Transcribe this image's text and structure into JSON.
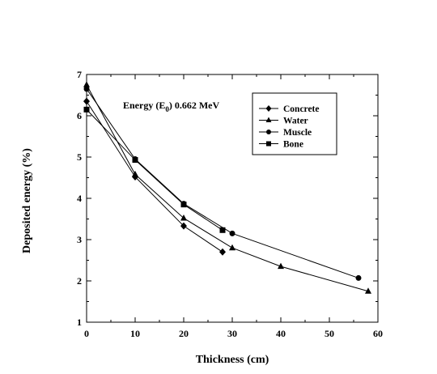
{
  "chart_data": {
    "type": "line",
    "xlabel": "Thickness (cm)",
    "ylabel": "Deposited energy  (%)",
    "xlim": [
      0,
      60
    ],
    "ylim": [
      1,
      7
    ],
    "xticks": [
      0,
      10,
      20,
      30,
      40,
      50,
      60
    ],
    "yticks": [
      1,
      2,
      3,
      4,
      5,
      6,
      7
    ],
    "grid": false,
    "legend_position": "top-right",
    "annotation": {
      "prefix": "Energy (E",
      "subscript": "0",
      "suffix": ") 0.662 MeV"
    },
    "series": [
      {
        "name": "Concrete",
        "marker": "diamond",
        "x": [
          0,
          10,
          20,
          28
        ],
        "y": [
          6.35,
          4.52,
          3.33,
          2.7
        ]
      },
      {
        "name": "Water",
        "marker": "triangle",
        "x": [
          0,
          10,
          20,
          30,
          40,
          58
        ],
        "y": [
          6.75,
          4.58,
          3.52,
          2.8,
          2.35,
          1.75
        ]
      },
      {
        "name": "Muscle",
        "marker": "circle",
        "x": [
          0,
          10,
          20,
          30,
          56
        ],
        "y": [
          6.65,
          4.95,
          3.87,
          3.15,
          2.07
        ]
      },
      {
        "name": "Bone",
        "marker": "square",
        "x": [
          0,
          10,
          20,
          28
        ],
        "y": [
          6.15,
          4.93,
          3.85,
          3.23
        ]
      }
    ]
  }
}
